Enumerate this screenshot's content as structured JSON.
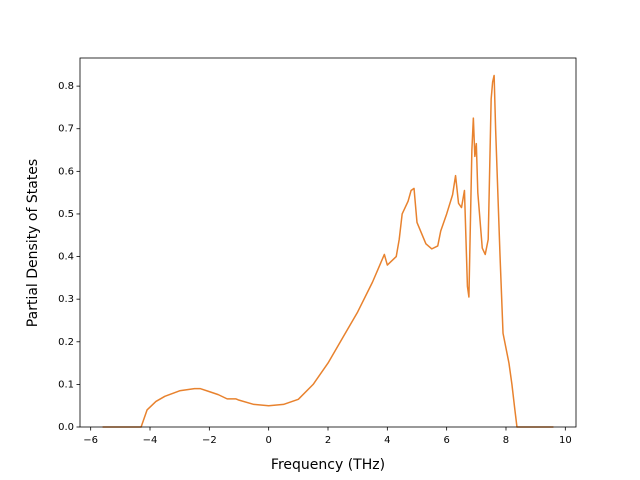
{
  "chart_data": {
    "type": "line",
    "xlabel": "Frequency (THz)",
    "ylabel": "Partial Density of States",
    "x": [
      -5.6,
      -4.3,
      -4.1,
      -3.8,
      -3.5,
      -3.0,
      -2.5,
      -2.3,
      -2.0,
      -1.7,
      -1.4,
      -1.1,
      -1.0,
      -0.5,
      0,
      0.5,
      1.0,
      1.5,
      2.0,
      2.5,
      3.0,
      3.5,
      3.9,
      4.0,
      4.3,
      4.4,
      4.5,
      4.7,
      4.8,
      4.9,
      5.0,
      5.3,
      5.5,
      5.7,
      5.8,
      6.0,
      6.2,
      6.3,
      6.4,
      6.5,
      6.6,
      6.7,
      6.75,
      6.85,
      6.9,
      6.95,
      7.0,
      7.05,
      7.2,
      7.3,
      7.4,
      7.5,
      7.55,
      7.6,
      7.65,
      7.8,
      7.9,
      8.1,
      8.2,
      8.3,
      8.37,
      9.6
    ],
    "values": [
      0,
      0,
      0.04,
      0.06,
      0.072,
      0.085,
      0.09,
      0.09,
      0.083,
      0.076,
      0.066,
      0.066,
      0.063,
      0.053,
      0.05,
      0.053,
      0.065,
      0.1,
      0.15,
      0.21,
      0.27,
      0.34,
      0.405,
      0.38,
      0.4,
      0.44,
      0.5,
      0.53,
      0.555,
      0.56,
      0.48,
      0.43,
      0.418,
      0.425,
      0.46,
      0.5,
      0.545,
      0.59,
      0.525,
      0.515,
      0.555,
      0.33,
      0.305,
      0.65,
      0.725,
      0.635,
      0.665,
      0.55,
      0.42,
      0.405,
      0.44,
      0.77,
      0.81,
      0.825,
      0.7,
      0.4,
      0.22,
      0.15,
      0.1,
      0.04,
      0,
      0
    ],
    "color": "#e8822e",
    "xlim": [
      -6.36,
      10.36
    ],
    "xticks": [
      {
        "value": -6,
        "label": "−6"
      },
      {
        "value": -4,
        "label": "−4"
      },
      {
        "value": -2,
        "label": "−2"
      },
      0,
      2,
      4,
      6,
      8,
      10
    ],
    "ylim": [
      0,
      0.866
    ],
    "yticks": [
      {
        "value": 0,
        "label": "0.0"
      },
      0.1,
      0.2,
      0.3,
      0.4,
      0.5,
      0.6,
      0.7,
      0.8
    ]
  }
}
